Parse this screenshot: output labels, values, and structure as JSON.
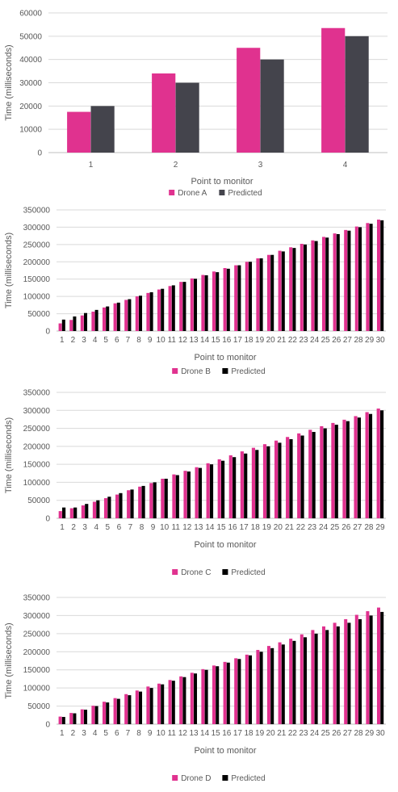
{
  "chart_data": [
    {
      "type": "bar",
      "ylabel": "Time (milliseconds)",
      "xlabel": "Point to monitor",
      "ylim": [
        0,
        60000
      ],
      "yticks": [
        0,
        10000,
        20000,
        30000,
        40000,
        50000,
        60000
      ],
      "grid": true,
      "legend": "bottom",
      "categories": [
        "1",
        "2",
        "3",
        "4"
      ],
      "series": [
        {
          "name": "Drone A",
          "color": "#e0328f",
          "values": [
            17500,
            34000,
            45000,
            53500
          ]
        },
        {
          "name": "Predicted",
          "color": "#44444c",
          "values": [
            20000,
            30000,
            40000,
            50000
          ]
        }
      ]
    },
    {
      "type": "bar",
      "ylabel": "Time (milliseconds)",
      "xlabel": "Point to monitor",
      "ylim": [
        0,
        350000
      ],
      "yticks": [
        0,
        50000,
        100000,
        150000,
        200000,
        250000,
        300000,
        350000
      ],
      "grid": true,
      "legend": "bottom",
      "categories": [
        "1",
        "2",
        "3",
        "4",
        "5",
        "6",
        "7",
        "8",
        "9",
        "10",
        "11",
        "12",
        "13",
        "14",
        "15",
        "16",
        "17",
        "18",
        "19",
        "20",
        "21",
        "22",
        "23",
        "24",
        "25",
        "26",
        "27",
        "28",
        "29",
        "30"
      ],
      "series": [
        {
          "name": "Drone B",
          "color": "#e0328f",
          "values": [
            22000,
            32000,
            45000,
            56000,
            68000,
            80000,
            90000,
            100000,
            110000,
            120000,
            130000,
            142000,
            152000,
            162000,
            172000,
            182000,
            190000,
            200000,
            210000,
            220000,
            232000,
            242000,
            252000,
            262000,
            272000,
            282000,
            292000,
            302000,
            312000,
            322000
          ]
        },
        {
          "name": "Predicted",
          "color": "#000000",
          "values": [
            33000,
            42000,
            52000,
            61000,
            71000,
            82000,
            92000,
            102000,
            112000,
            122000,
            132000,
            142000,
            151000,
            161000,
            170000,
            180000,
            190000,
            200000,
            210000,
            220000,
            230000,
            240000,
            250000,
            260000,
            270000,
            280000,
            290000,
            300000,
            310000,
            320000
          ]
        }
      ]
    },
    {
      "type": "bar",
      "ylabel": "Time (milliseconds)",
      "xlabel": "Point to monitor",
      "ylim": [
        0,
        350000
      ],
      "yticks": [
        0,
        50000,
        100000,
        150000,
        200000,
        250000,
        300000,
        350000
      ],
      "grid": true,
      "legend": "bottom",
      "categories": [
        "1",
        "2",
        "3",
        "4",
        "5",
        "6",
        "7",
        "8",
        "9",
        "10",
        "11",
        "12",
        "13",
        "14",
        "15",
        "16",
        "17",
        "18",
        "19",
        "20",
        "21",
        "22",
        "23",
        "24",
        "25",
        "26",
        "27",
        "28",
        "29"
      ],
      "series": [
        {
          "name": "Drone C",
          "color": "#e0328f",
          "values": [
            20000,
            28000,
            36000,
            46000,
            56000,
            66000,
            78000,
            88000,
            98000,
            110000,
            122000,
            132000,
            142000,
            153000,
            164000,
            175000,
            186000,
            196000,
            206000,
            216000,
            226000,
            236000,
            246000,
            256000,
            265000,
            274000,
            284000,
            295000,
            305000
          ]
        },
        {
          "name": "Predicted",
          "color": "#000000",
          "values": [
            30000,
            30000,
            40000,
            50000,
            60000,
            70000,
            80000,
            90000,
            100000,
            110000,
            120000,
            130000,
            140000,
            150000,
            160000,
            170000,
            180000,
            190000,
            200000,
            210000,
            220000,
            230000,
            240000,
            250000,
            260000,
            270000,
            280000,
            290000,
            300000
          ]
        }
      ]
    },
    {
      "type": "bar",
      "ylabel": "Time (milliseconds)",
      "xlabel": "Point to monitor",
      "ylim": [
        0,
        350000
      ],
      "yticks": [
        0,
        50000,
        100000,
        150000,
        200000,
        250000,
        300000,
        350000
      ],
      "grid": true,
      "legend": "bottom",
      "categories": [
        "1",
        "2",
        "3",
        "4",
        "5",
        "6",
        "7",
        "8",
        "9",
        "10",
        "11",
        "12",
        "13",
        "14",
        "15",
        "16",
        "17",
        "18",
        "19",
        "20",
        "21",
        "22",
        "23",
        "24",
        "25",
        "26",
        "27",
        "28",
        "29",
        "30"
      ],
      "series": [
        {
          "name": "Drone D",
          "color": "#e0328f",
          "values": [
            21000,
            31000,
            41000,
            51000,
            62000,
            72000,
            83000,
            93000,
            104000,
            112000,
            122000,
            132000,
            142000,
            152000,
            162000,
            172000,
            182000,
            192000,
            205000,
            216000,
            226000,
            236000,
            248000,
            260000,
            270000,
            280000,
            290000,
            302000,
            312000,
            322000
          ]
        },
        {
          "name": "Predicted",
          "color": "#000000",
          "values": [
            20000,
            30000,
            40000,
            50000,
            60000,
            70000,
            80000,
            90000,
            100000,
            110000,
            120000,
            130000,
            140000,
            150000,
            160000,
            170000,
            180000,
            190000,
            200000,
            210000,
            220000,
            230000,
            240000,
            250000,
            260000,
            270000,
            280000,
            290000,
            300000,
            310000
          ]
        }
      ]
    }
  ]
}
